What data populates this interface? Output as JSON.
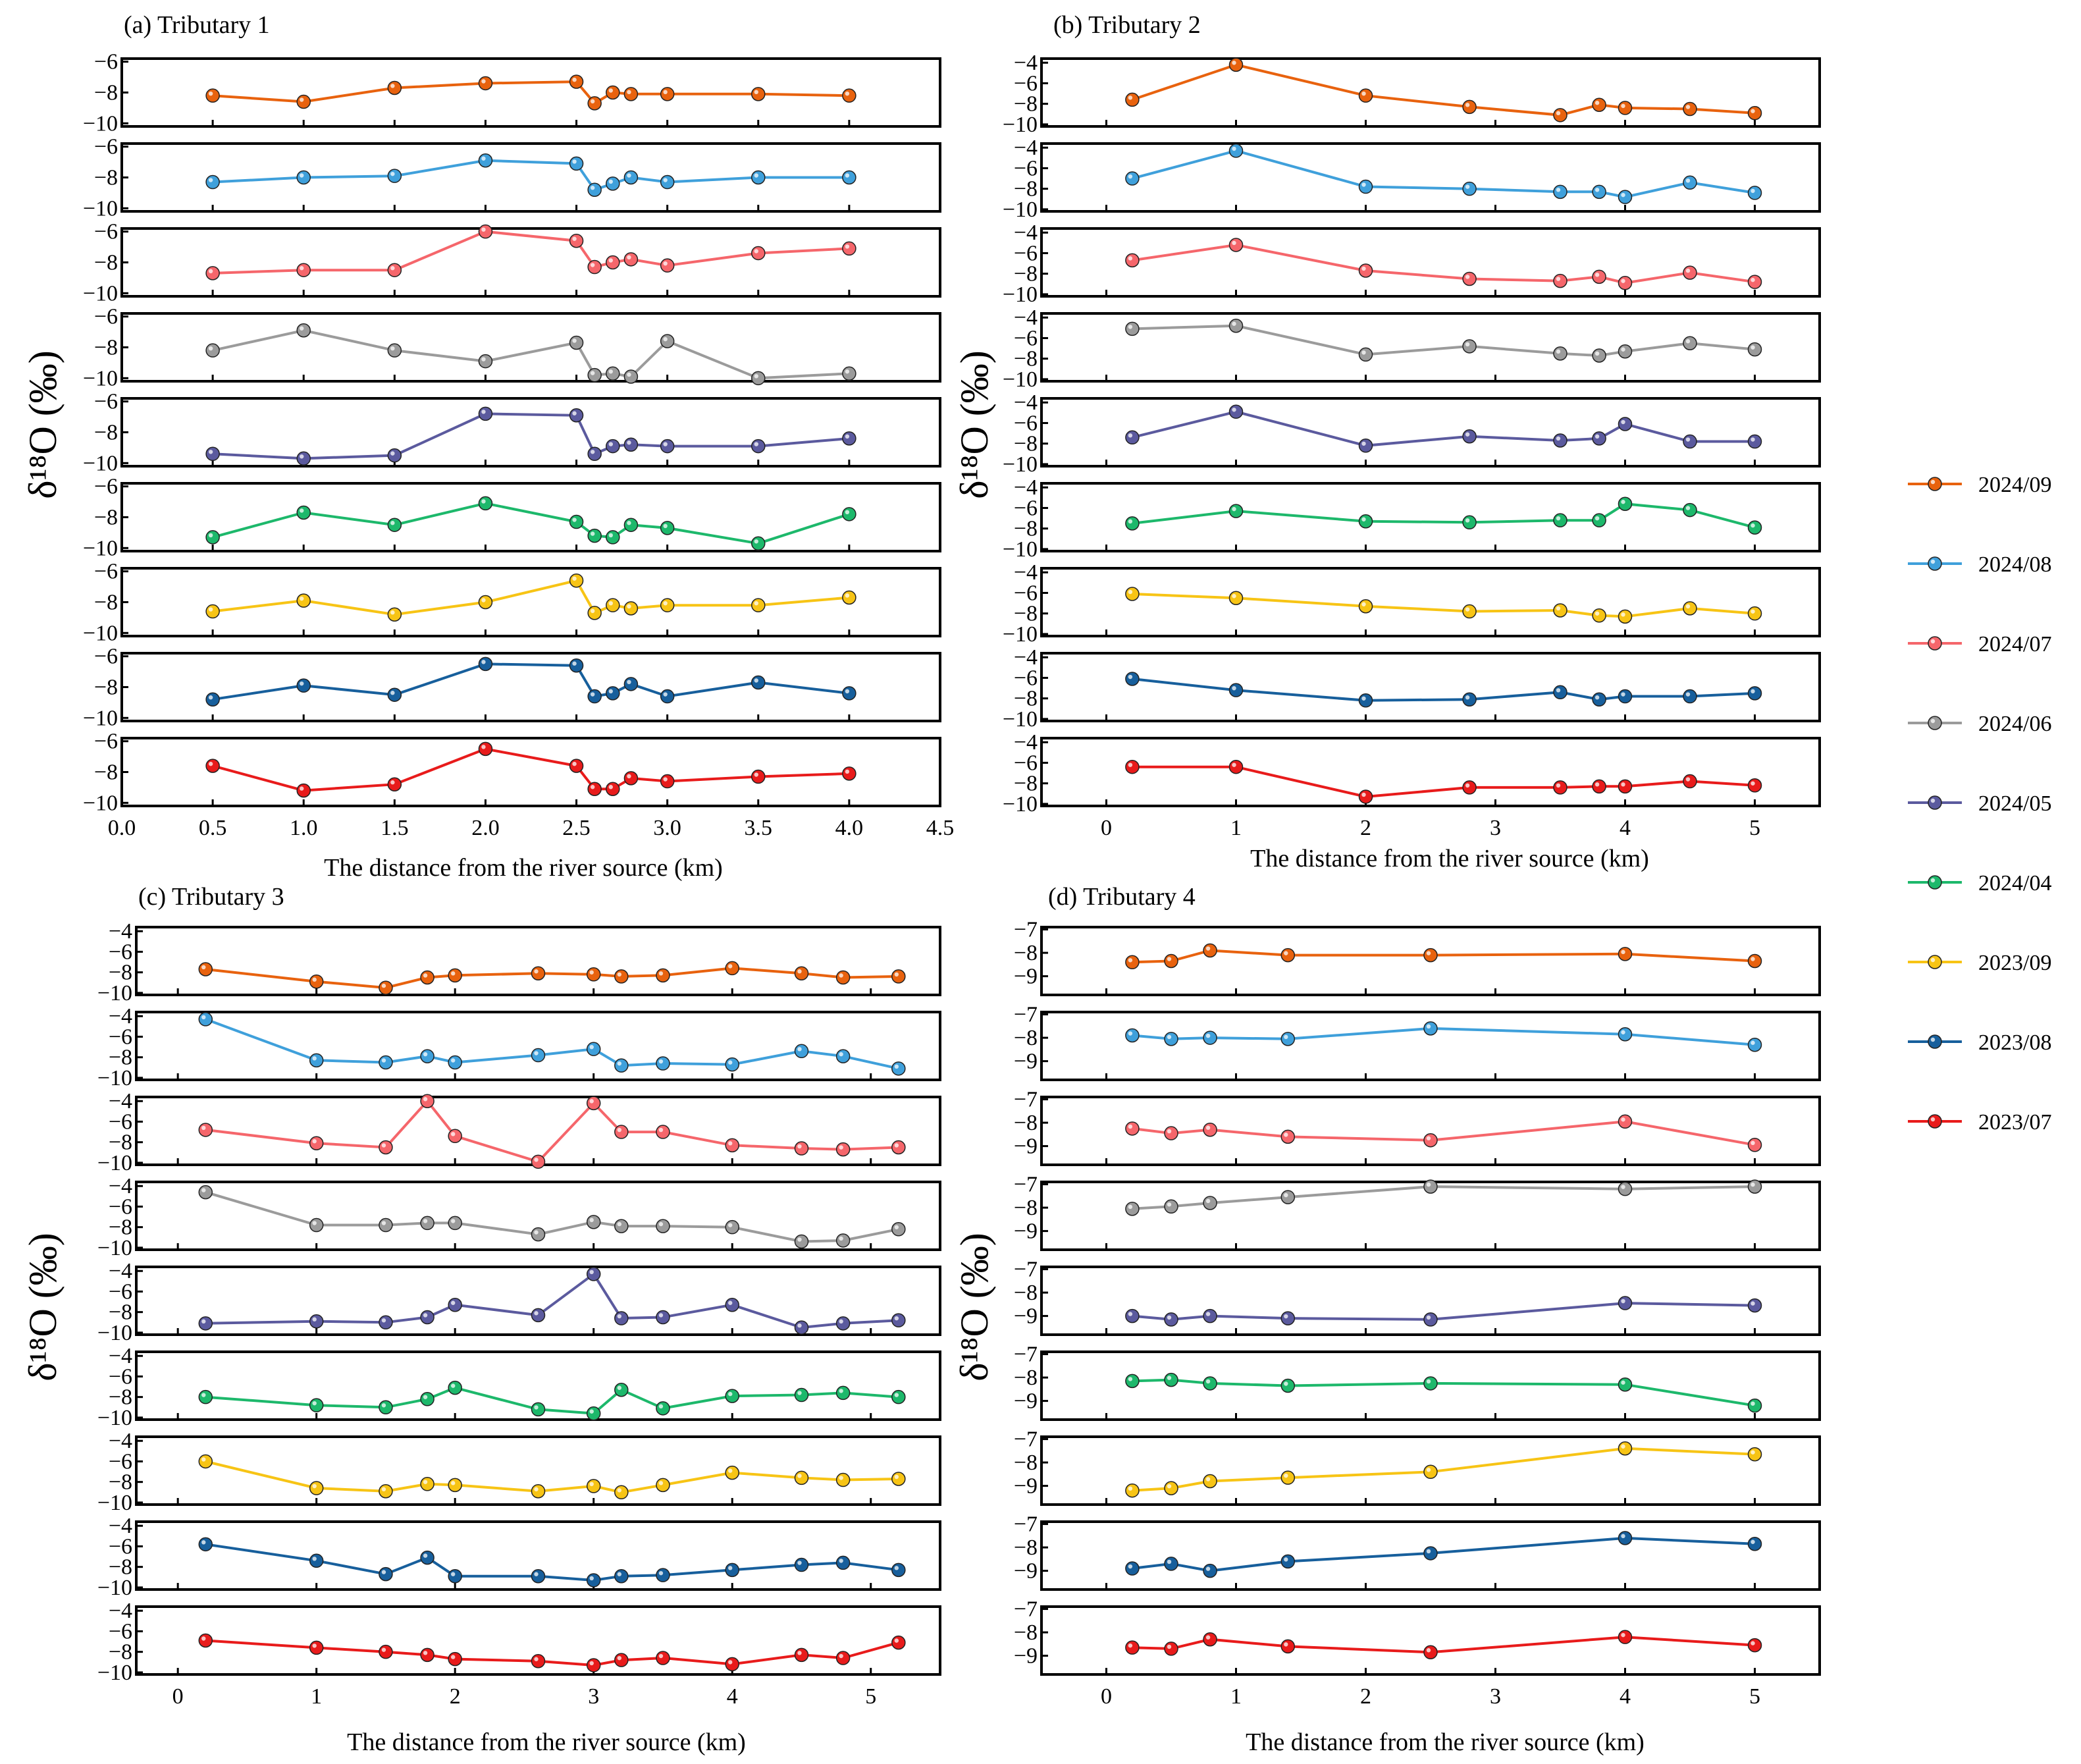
{
  "figure": {
    "y_axis_label": "δ¹⁸O (‰)",
    "x_axis_label": "The distance from the river source (km)"
  },
  "legend": [
    {
      "label": "2024/09",
      "color": "#E8620E"
    },
    {
      "label": "2024/08",
      "color": "#3FA0DB"
    },
    {
      "label": "2024/07",
      "color": "#F5666B"
    },
    {
      "label": "2024/06",
      "color": "#9B9B9B"
    },
    {
      "label": "2024/05",
      "color": "#5B5A9E"
    },
    {
      "label": "2024/04",
      "color": "#1DB86B"
    },
    {
      "label": "2023/09",
      "color": "#F7C415"
    },
    {
      "label": "2023/08",
      "color": "#175F9C"
    },
    {
      "label": "2023/07",
      "color": "#E81B1B"
    }
  ],
  "chart_data": [
    {
      "type": "line",
      "title": "(a) Tributary 1",
      "xlabel": "The distance from the river source (km)",
      "ylabel": "δ¹⁸O (‰)",
      "xlim": [
        0,
        4.5
      ],
      "xticks": [
        0,
        0.5,
        1,
        1.5,
        2,
        2.5,
        3,
        3.5,
        4,
        4.5
      ],
      "xtick_labels": [
        "0.0",
        "0.5",
        "1.0",
        "1.5",
        "2.0",
        "2.5",
        "3.0",
        "3.5",
        "4.0",
        "4.5"
      ],
      "ylim": [
        -10.2,
        -5.8
      ],
      "yticks": [
        -10,
        -8,
        -6
      ],
      "ytick_labels": [
        "−10",
        "−8",
        "−6"
      ],
      "x": [
        0.5,
        1.0,
        1.5,
        2.0,
        2.5,
        2.6,
        2.7,
        2.8,
        3.0,
        3.5,
        4.0
      ],
      "series": [
        {
          "name": "2024/09",
          "values": [
            -8.2,
            -8.6,
            -7.7,
            -7.4,
            -7.3,
            -8.7,
            -8.0,
            -8.1,
            -8.1,
            -8.1,
            -8.2
          ]
        },
        {
          "name": "2024/08",
          "values": [
            -8.3,
            -8.0,
            -7.9,
            -6.9,
            -7.1,
            -8.8,
            -8.4,
            -8.0,
            -8.3,
            -8.0,
            -8.0
          ]
        },
        {
          "name": "2024/07",
          "values": [
            -8.7,
            -8.5,
            -8.5,
            -6.0,
            -6.6,
            -8.3,
            -8.0,
            -7.8,
            -8.2,
            -7.4,
            -7.1
          ]
        },
        {
          "name": "2024/06",
          "values": [
            -8.2,
            -6.9,
            -8.2,
            -8.9,
            -7.7,
            -9.8,
            -9.7,
            -9.9,
            -7.6,
            -10.0,
            -9.7
          ]
        },
        {
          "name": "2024/05",
          "values": [
            -9.4,
            -9.7,
            -9.5,
            -6.8,
            -6.9,
            -9.4,
            -8.9,
            -8.8,
            -8.9,
            -8.9,
            -8.4
          ]
        },
        {
          "name": "2024/04",
          "values": [
            -9.3,
            -7.7,
            -8.5,
            -7.1,
            -8.3,
            -9.2,
            -9.3,
            -8.5,
            -8.7,
            -9.7,
            -7.8
          ]
        },
        {
          "name": "2023/09",
          "values": [
            -8.6,
            -7.9,
            -8.8,
            -8.0,
            -6.6,
            -8.7,
            -8.2,
            -8.4,
            -8.2,
            -8.2,
            -7.7
          ]
        },
        {
          "name": "2023/08",
          "values": [
            -8.8,
            -7.9,
            -8.5,
            -6.5,
            -6.6,
            -8.6,
            -8.4,
            -7.8,
            -8.6,
            -7.7,
            -8.4
          ]
        },
        {
          "name": "2023/07",
          "values": [
            -7.6,
            -9.2,
            -8.8,
            -6.5,
            -7.6,
            -9.1,
            -9.1,
            -8.4,
            -8.6,
            -8.3,
            -8.1
          ]
        }
      ]
    },
    {
      "type": "line",
      "title": "(b) Tributary 2",
      "xlabel": "The distance from the river source (km)",
      "ylabel": "δ¹⁸O (‰)",
      "xlim": [
        -0.5,
        5.5
      ],
      "xticks": [
        0,
        1,
        2,
        3,
        4,
        5
      ],
      "xtick_labels": [
        "0",
        "1",
        "2",
        "3",
        "4",
        "5"
      ],
      "ylim": [
        -10.2,
        -3.6
      ],
      "yticks": [
        -10,
        -8,
        -6,
        -4
      ],
      "ytick_labels": [
        "−10",
        "−8",
        "−6",
        "−4"
      ],
      "x": [
        0.2,
        1.0,
        2.0,
        2.8,
        3.5,
        3.8,
        4.0,
        4.5,
        5.0
      ],
      "series": [
        {
          "name": "2024/09",
          "values": [
            -7.6,
            -4.2,
            -7.2,
            -8.3,
            -9.1,
            -8.1,
            -8.4,
            -8.5,
            -8.9
          ]
        },
        {
          "name": "2024/08",
          "values": [
            -7.0,
            -4.3,
            -7.8,
            -8.0,
            -8.3,
            -8.3,
            -8.8,
            -7.4,
            -8.4
          ]
        },
        {
          "name": "2024/07",
          "values": [
            -6.7,
            -5.2,
            -7.7,
            -8.5,
            -8.7,
            -8.3,
            -8.9,
            -7.9,
            -8.8
          ]
        },
        {
          "name": "2024/06",
          "values": [
            -5.1,
            -4.8,
            -7.6,
            -6.8,
            -7.5,
            -7.7,
            -7.3,
            -6.5,
            -7.1
          ]
        },
        {
          "name": "2024/05",
          "values": [
            -7.4,
            -4.9,
            -8.2,
            -7.3,
            -7.7,
            -7.5,
            -6.1,
            -7.8,
            -7.8
          ]
        },
        {
          "name": "2024/04",
          "values": [
            -7.5,
            -6.3,
            -7.3,
            -7.4,
            -7.2,
            -7.2,
            -5.6,
            -6.2,
            -7.9
          ]
        },
        {
          "name": "2023/09",
          "values": [
            -6.1,
            -6.5,
            -7.3,
            -7.8,
            -7.7,
            -8.2,
            -8.3,
            -7.5,
            -8.0
          ]
        },
        {
          "name": "2023/08",
          "values": [
            -6.1,
            -7.2,
            -8.2,
            -8.1,
            -7.4,
            -8.1,
            -7.8,
            -7.8,
            -7.5
          ]
        },
        {
          "name": "2023/07",
          "values": [
            -6.4,
            -6.4,
            -9.3,
            -8.4,
            -8.4,
            -8.3,
            -8.3,
            -7.8,
            -8.2
          ]
        }
      ]
    },
    {
      "type": "line",
      "title": "(c)  Tributary 3",
      "xlabel": "The distance from the river source (km)",
      "ylabel": "δ¹⁸O (‰)",
      "xlim": [
        -0.3,
        5.5
      ],
      "xticks": [
        0,
        1,
        2,
        3,
        4,
        5
      ],
      "xtick_labels": [
        "0",
        "1",
        "2",
        "3",
        "4",
        "5"
      ],
      "ylim": [
        -10.2,
        -3.6
      ],
      "yticks": [
        -10,
        -8,
        -6,
        -4
      ],
      "ytick_labels": [
        "−10",
        "−8",
        "−6",
        "−4"
      ],
      "x": [
        0.2,
        1.0,
        1.5,
        1.8,
        2.0,
        2.6,
        3.0,
        3.2,
        3.5,
        4.0,
        4.5,
        4.8,
        5.2
      ],
      "series": [
        {
          "name": "2024/09",
          "values": [
            -7.7,
            -8.9,
            -9.5,
            -8.5,
            -8.3,
            -8.1,
            -8.2,
            -8.4,
            -8.3,
            -7.6,
            -8.1,
            -8.5,
            -8.4
          ]
        },
        {
          "name": "2024/08",
          "values": [
            -4.3,
            -8.3,
            -8.5,
            -7.9,
            -8.5,
            -7.8,
            -7.2,
            -8.8,
            -8.6,
            -8.7,
            -7.4,
            -7.9,
            -9.1
          ]
        },
        {
          "name": "2024/07",
          "values": [
            -6.8,
            -8.1,
            -8.5,
            -4.0,
            -7.4,
            -9.9,
            -4.2,
            -7.0,
            -7.0,
            -8.3,
            -8.6,
            -8.7,
            -8.5
          ]
        },
        {
          "name": "2024/06",
          "values": [
            -4.6,
            -7.8,
            -7.8,
            -7.6,
            -7.6,
            -8.7,
            -7.5,
            -7.9,
            -7.9,
            -8.0,
            -9.4,
            -9.3,
            -8.2
          ]
        },
        {
          "name": "2024/05",
          "values": [
            -9.1,
            -8.9,
            -9.0,
            -8.5,
            -7.3,
            -8.3,
            -4.3,
            -8.6,
            -8.5,
            -7.3,
            -9.5,
            -9.1,
            -8.8
          ]
        },
        {
          "name": "2024/04",
          "values": [
            -8.0,
            -8.8,
            -9.0,
            -8.2,
            -7.1,
            -9.2,
            -9.6,
            -7.3,
            -9.1,
            -7.9,
            -7.8,
            -7.6,
            -8.0
          ]
        },
        {
          "name": "2023/09",
          "values": [
            -6.0,
            -8.6,
            -8.9,
            -8.2,
            -8.3,
            -8.9,
            -8.4,
            -9.0,
            -8.3,
            -7.1,
            -7.6,
            -7.8,
            -7.7
          ]
        },
        {
          "name": "2023/08",
          "values": [
            -5.8,
            -7.4,
            -8.7,
            -7.1,
            -8.9,
            -8.9,
            -9.3,
            -8.9,
            -8.8,
            -8.3,
            -7.8,
            -7.6,
            -8.3
          ]
        },
        {
          "name": "2023/07",
          "values": [
            -6.9,
            -7.6,
            -8.0,
            -8.3,
            -8.7,
            -8.9,
            -9.3,
            -8.8,
            -8.6,
            -9.2,
            -8.3,
            -8.6,
            -7.1
          ]
        }
      ]
    },
    {
      "type": "line",
      "title": "(d) Tributary 4",
      "xlabel": "The distance from the river source (km)",
      "ylabel": "δ¹⁸O (‰)",
      "xlim": [
        -0.5,
        5.5
      ],
      "xticks": [
        0,
        1,
        2,
        3,
        4,
        5
      ],
      "xtick_labels": [
        "0",
        "1",
        "2",
        "3",
        "4",
        "5"
      ],
      "ylim": [
        -9.8,
        -6.9
      ],
      "yticks": [
        -9,
        -8,
        -7
      ],
      "ytick_labels": [
        "−9",
        "−8",
        "−7"
      ],
      "x": [
        0.2,
        0.5,
        0.8,
        1.4,
        2.5,
        4.0,
        5.0
      ],
      "series": [
        {
          "name": "2024/09",
          "values": [
            -8.4,
            -8.35,
            -7.9,
            -8.1,
            -8.1,
            -8.05,
            -8.35
          ]
        },
        {
          "name": "2024/08",
          "values": [
            -7.9,
            -8.05,
            -8.0,
            -8.05,
            -7.6,
            -7.85,
            -8.3
          ]
        },
        {
          "name": "2024/07",
          "values": [
            -8.25,
            -8.45,
            -8.3,
            -8.6,
            -8.75,
            -7.95,
            -8.95
          ]
        },
        {
          "name": "2024/06",
          "values": [
            -8.05,
            -7.95,
            -7.8,
            -7.55,
            -7.1,
            -7.2,
            -7.1
          ]
        },
        {
          "name": "2024/05",
          "values": [
            -9.0,
            -9.15,
            -9.0,
            -9.1,
            -9.15,
            -8.45,
            -8.55
          ]
        },
        {
          "name": "2024/04",
          "values": [
            -8.15,
            -8.1,
            -8.25,
            -8.35,
            -8.25,
            -8.3,
            -9.2
          ]
        },
        {
          "name": "2023/09",
          "values": [
            -9.2,
            -9.1,
            -8.8,
            -8.65,
            -8.4,
            -7.4,
            -7.65
          ]
        },
        {
          "name": "2023/08",
          "values": [
            -8.9,
            -8.7,
            -9.0,
            -8.6,
            -8.25,
            -7.6,
            -7.85
          ]
        },
        {
          "name": "2023/07",
          "values": [
            -8.65,
            -8.7,
            -8.3,
            -8.6,
            -8.85,
            -8.2,
            -8.55
          ]
        }
      ]
    }
  ]
}
